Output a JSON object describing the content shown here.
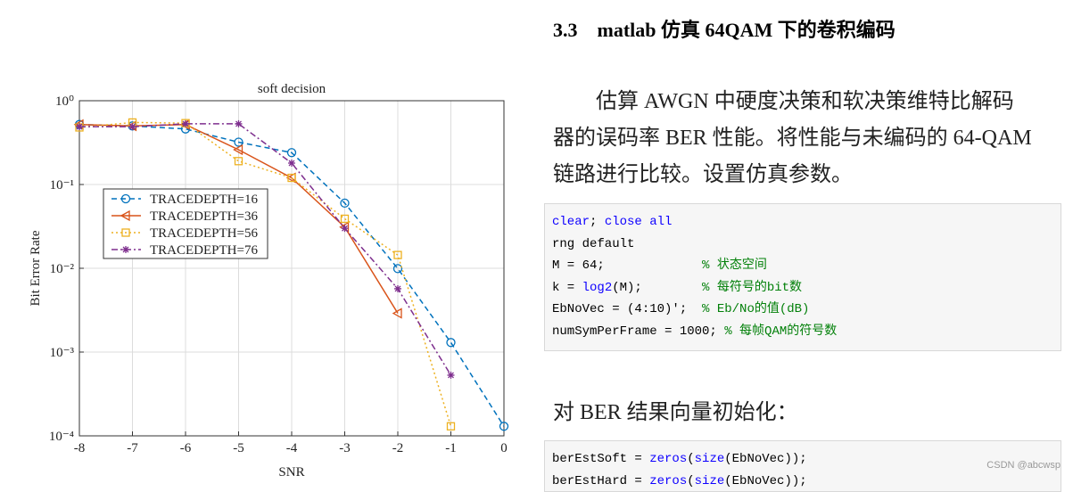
{
  "chart_data": {
    "type": "line",
    "title": "soft decision",
    "x_label": "SNR",
    "y_label": "Bit Error Rate",
    "x": [
      -8,
      -7,
      -6,
      -5,
      -4,
      -3,
      -2,
      -1,
      0
    ],
    "xlim": [
      -8,
      0
    ],
    "xticks": [
      -8,
      -7,
      -6,
      -5,
      -4,
      -3,
      -2,
      -1,
      0
    ],
    "ylim": [
      0.0001,
      1
    ],
    "y_scale": "log",
    "yticks": [
      {
        "value": 1,
        "label": "10⁰"
      },
      {
        "value": 0.1,
        "label": "10⁻¹"
      },
      {
        "value": 0.01,
        "label": "10⁻²"
      },
      {
        "value": 0.001,
        "label": "10⁻³"
      },
      {
        "value": 0.0001,
        "label": "10⁻⁴"
      }
    ],
    "grid": true,
    "legend": "center left",
    "series": [
      {
        "name": "TRACEDEPTH=16",
        "color": "#0072bd",
        "dash": "6,4",
        "marker": "circle",
        "values": [
          0.52,
          0.5,
          0.46,
          0.32,
          0.24,
          0.06,
          0.0099,
          0.0013,
          0.00013
        ]
      },
      {
        "name": "TRACEDEPTH=36",
        "color": "#d95319",
        "dash": "",
        "marker": "triangle-left",
        "values": [
          0.52,
          0.5,
          0.52,
          0.26,
          0.12,
          0.031,
          0.0029,
          null,
          null
        ]
      },
      {
        "name": "TRACEDEPTH=56",
        "color": "#edb120",
        "dash": "2,3",
        "marker": "square",
        "values": [
          0.48,
          0.55,
          0.54,
          0.19,
          0.12,
          0.039,
          0.0144,
          0.00013,
          null
        ]
      },
      {
        "name": "TRACEDEPTH=76",
        "color": "#7e2f8e",
        "dash": "7,3,2,3",
        "marker": "star",
        "values": [
          0.49,
          0.49,
          0.53,
          0.53,
          0.18,
          0.03,
          0.0057,
          0.00053,
          null
        ]
      }
    ]
  },
  "heading": "3.3　matlab 仿真 64QAM 下的卷积编码",
  "paragraph1": [
    "估算 AWGN 中硬度决策和软决策维特比解码",
    "器的误码率 BER 性能。将性能与未编码的 64-QAM",
    "链路进行比较。设置仿真参数。"
  ],
  "code1": [
    [
      {
        "text": "clear",
        "color": "#0e00ff"
      },
      {
        "text": "; ",
        "color": "#000000"
      },
      {
        "text": "close all",
        "color": "#0e00ff"
      }
    ],
    [
      {
        "text": "rng default",
        "color": "#000000"
      }
    ],
    [
      {
        "text": "M = 64;             ",
        "color": "#000000"
      },
      {
        "text": "% 状态空间",
        "color": "#028009"
      }
    ],
    [
      {
        "text": "k = ",
        "color": "#000000"
      },
      {
        "text": "log2",
        "color": "#0e00ff"
      },
      {
        "text": "(M);        ",
        "color": "#000000"
      },
      {
        "text": "% 每符号的bit数",
        "color": "#028009"
      }
    ],
    [
      {
        "text": "EbNoVec = (4:10)';  ",
        "color": "#000000"
      },
      {
        "text": "% Eb/No的值(dB)",
        "color": "#028009"
      }
    ],
    [
      {
        "text": "numSymPerFrame = 1000; ",
        "color": "#000000"
      },
      {
        "text": "% 每帧QAM的符号数",
        "color": "#028009"
      }
    ]
  ],
  "paragraph2": "对 BER 结果向量初始化：",
  "code2": [
    [
      {
        "text": "berEstSoft = ",
        "color": "#000000"
      },
      {
        "text": "zeros",
        "color": "#0e00ff"
      },
      {
        "text": "(",
        "color": "#000000"
      },
      {
        "text": "size",
        "color": "#0e00ff"
      },
      {
        "text": "(EbNoVec));",
        "color": "#000000"
      }
    ],
    [
      {
        "text": "berEstHard = ",
        "color": "#000000"
      },
      {
        "text": "zeros",
        "color": "#0e00ff"
      },
      {
        "text": "(",
        "color": "#000000"
      },
      {
        "text": "size",
        "color": "#0e00ff"
      },
      {
        "text": "(EbNoVec));",
        "color": "#000000"
      }
    ]
  ],
  "watermark": "CSDN @abcwsp"
}
